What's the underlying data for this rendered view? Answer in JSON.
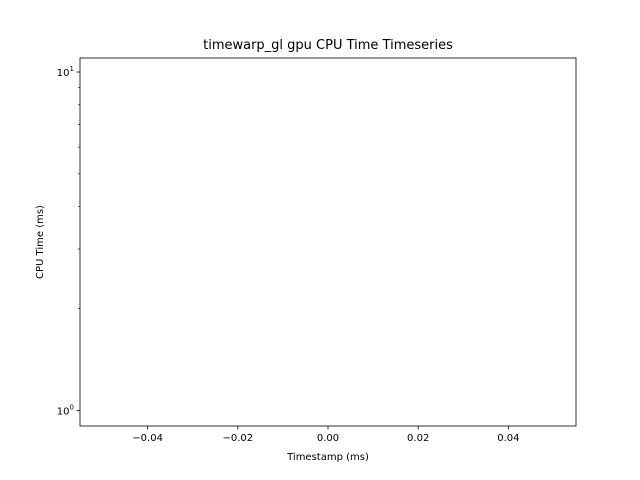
{
  "chart_data": {
    "type": "line",
    "title": "timewarp_gl gpu CPU Time Timeseries",
    "xlabel": "Timestamp (ms)",
    "ylabel": "CPU Time (ms)",
    "x_scale": "linear",
    "y_scale": "log",
    "xlim": [
      -0.055,
      0.055
    ],
    "ylim": [
      0.9,
      11
    ],
    "x_ticks": [
      -0.04,
      -0.02,
      0.0,
      0.02,
      0.04
    ],
    "x_tick_labels": [
      "−0.04",
      "−0.02",
      "0.00",
      "0.02",
      "0.04"
    ],
    "y_major_ticks": [
      1,
      10
    ],
    "y_tick_labels": [
      {
        "base": "10",
        "exp": "0"
      },
      {
        "base": "10",
        "exp": "1"
      }
    ],
    "y_minor_ticks": [
      2,
      3,
      4,
      5,
      6,
      7,
      8,
      9
    ],
    "grid": false,
    "series": [],
    "colors": {
      "axes": "#000000",
      "background": "#ffffff"
    }
  }
}
